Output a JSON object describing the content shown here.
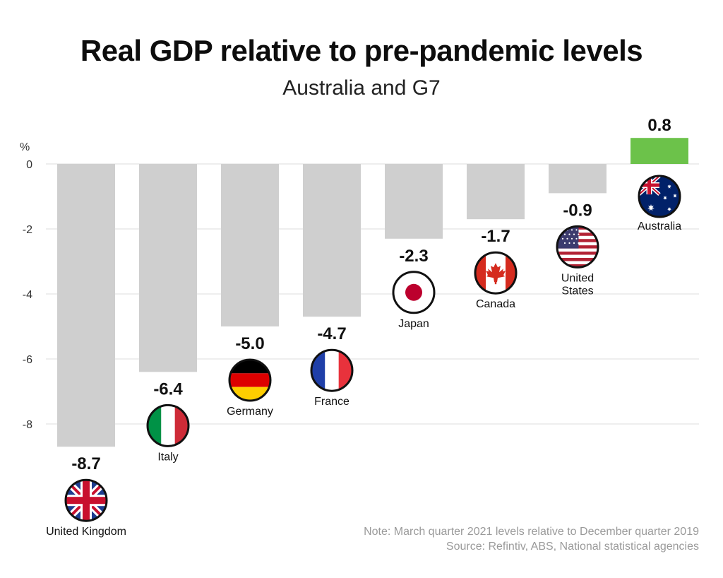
{
  "chart_data": {
    "type": "bar",
    "title": "Real GDP relative to pre-pandemic levels",
    "subtitle": "Australia and G7",
    "ylabel": "%",
    "ylim": [
      -8.7,
      0.8
    ],
    "yticks": [
      0,
      -2,
      -4,
      -6,
      -8
    ],
    "grid": true,
    "categories": [
      "United Kingdom",
      "Italy",
      "Germany",
      "France",
      "Japan",
      "Canada",
      "United States",
      "Australia"
    ],
    "values": [
      -8.7,
      -6.4,
      -5.0,
      -4.7,
      -2.3,
      -1.7,
      -0.9,
      0.8
    ],
    "value_labels": [
      "-8.7",
      "-6.4",
      "-5.0",
      "-4.7",
      "-2.3",
      "-1.7",
      "-0.9",
      "0.8"
    ],
    "category_labels": [
      [
        "United Kingdom"
      ],
      [
        "Italy"
      ],
      [
        "Germany"
      ],
      [
        "France"
      ],
      [
        "Japan"
      ],
      [
        "Canada"
      ],
      [
        "United",
        "States"
      ],
      [
        "Australia"
      ]
    ],
    "flag_icons": [
      "uk-flag-icon",
      "italy-flag-icon",
      "germany-flag-icon",
      "france-flag-icon",
      "japan-flag-icon",
      "canada-flag-icon",
      "usa-flag-icon",
      "australia-flag-icon"
    ],
    "colors": {
      "negative": "#cfcfcf",
      "positive": "#6cc24a",
      "grid": "#dcdcdc"
    }
  },
  "notes": {
    "note": "Note: March quarter 2021 levels relative to December quarter 2019",
    "source": "Source: Refintiv, ABS, National statistical agencies"
  }
}
